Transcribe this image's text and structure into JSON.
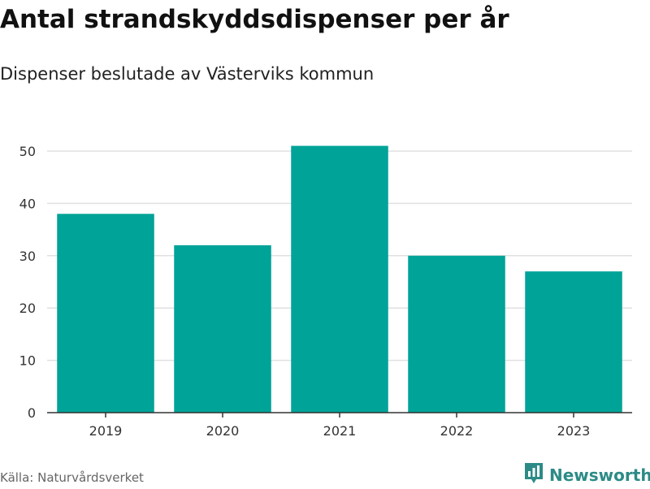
{
  "title": "Antal strandskyddsdispenser per år",
  "subtitle": "Dispenser beslutade av Västerviks kommun",
  "source": "Källa: Naturvårdsverket",
  "brand": {
    "name": "Newsworthy",
    "icon": "bar-chart-logo-icon",
    "color": "#2c8b86"
  },
  "colors": {
    "bar": "#00a398",
    "grid": "#e0e0e0",
    "axis": "#333333"
  },
  "chart_data": {
    "type": "bar",
    "categories": [
      "2019",
      "2020",
      "2021",
      "2022",
      "2023"
    ],
    "values": [
      38,
      32,
      51,
      30,
      27
    ],
    "xlabel": "",
    "ylabel": "",
    "ylim": [
      0,
      50
    ],
    "yticks": [
      0,
      10,
      20,
      30,
      40,
      50
    ],
    "grid": true,
    "legend": "none"
  }
}
